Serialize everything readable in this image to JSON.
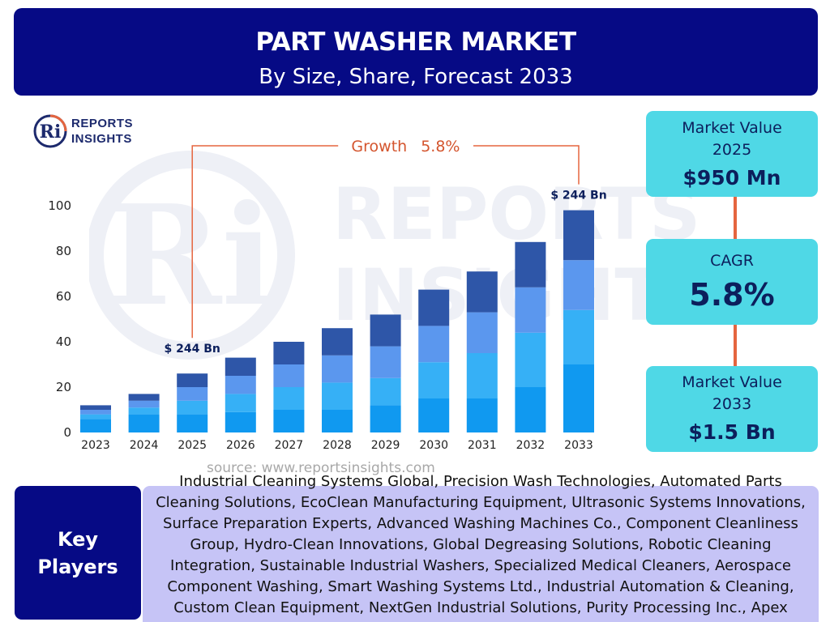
{
  "header": {
    "title": "PART WASHER MARKET",
    "subtitle": "By Size, Share, Forecast 2033"
  },
  "logo": {
    "mark_text": "Ri",
    "line1": "REPORTS",
    "line2": "INSIGHTS"
  },
  "colors": {
    "header_bg": "#060a85",
    "stat_box_bg": "#4fd8e6",
    "connector": "#e5653f",
    "key_players_bg": "#c6c4f6",
    "growth_text": "#d4552e"
  },
  "chart_data": {
    "type": "bar",
    "stacked": true,
    "categories": [
      "2023",
      "2024",
      "2025",
      "2026",
      "2027",
      "2028",
      "2029",
      "2030",
      "2031",
      "2032",
      "2033"
    ],
    "series": [
      {
        "color": "#1099f0",
        "values": [
          6,
          8,
          8,
          9,
          10,
          10,
          12,
          15,
          15,
          20,
          30
        ]
      },
      {
        "color": "#36b0f6",
        "values": [
          2,
          3,
          6,
          8,
          10,
          12,
          12,
          16,
          20,
          24,
          24
        ]
      },
      {
        "color": "#5b97ee",
        "values": [
          2,
          3,
          6,
          8,
          10,
          12,
          14,
          16,
          18,
          20,
          22
        ]
      },
      {
        "color": "#2e56a8",
        "values": [
          2,
          3,
          6,
          8,
          10,
          12,
          14,
          16,
          18,
          20,
          22
        ]
      }
    ],
    "ylim": [
      0,
      100
    ],
    "yticks": [
      0,
      20,
      40,
      60,
      80,
      100
    ],
    "grid": false,
    "annotations": {
      "growth_label": "Growth",
      "growth_value": "5.8%",
      "start_label": "$ 244 Bn",
      "end_label": "$ 244 Bn"
    },
    "watermark": "REPORTS INSIGHTS"
  },
  "source": "source: www.reportsinsights.com",
  "stats": {
    "value_2025_label": "Market Value",
    "value_2025_year": "2025",
    "value_2025": "$950 Mn",
    "cagr_label": "CAGR",
    "cagr": "5.8%",
    "value_2033_label": "Market Value",
    "value_2033_year": "2033",
    "value_2033": "$1.5 Bn"
  },
  "key_players": {
    "label_line1": "Key",
    "label_line2": "Players",
    "text": "Industrial Cleaning Systems Global, Precision Wash Technologies, Automated Parts Cleaning Solutions, EcoClean Manufacturing Equipment, Ultrasonic Systems Innovations, Surface Preparation Experts, Advanced Washing Machines Co., Component Cleanliness Group, Hydro-Clean Innovations, Global Degreasing Solutions, Robotic Cleaning Integration, Sustainable Industrial Washers, Specialized Medical Cleaners, Aerospace Component Washing, Smart Washing Systems Ltd., Industrial Automation & Cleaning, Custom Clean Equipment, NextGen Industrial Solutions, Purity Processing Inc., Apex Washing Technologies"
  }
}
